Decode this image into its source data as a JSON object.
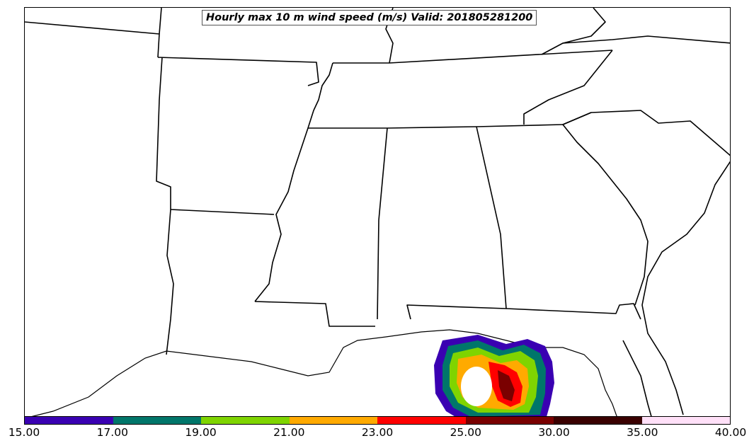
{
  "title": "Hourly max 10 m wind speed (m/s) Valid: 201805281200",
  "map": {
    "region": "Southeastern United States and Gulf of Mexico",
    "field": "10 m wind speed (hourly max)",
    "units": "m/s",
    "feature": "Tropical cyclone wind field with a hollow center over the northeastern Gulf of Mexico"
  },
  "colorbar": {
    "ticks": [
      "15.00",
      "17.00",
      "19.00",
      "21.00",
      "23.00",
      "25.00",
      "30.00",
      "35.00",
      "40.00"
    ],
    "colors": [
      "#3a00b2",
      "#00766a",
      "#7fd400",
      "#ffaa00",
      "#ff0000",
      "#7a0000",
      "#3a0000",
      "#ffe0f8"
    ]
  }
}
